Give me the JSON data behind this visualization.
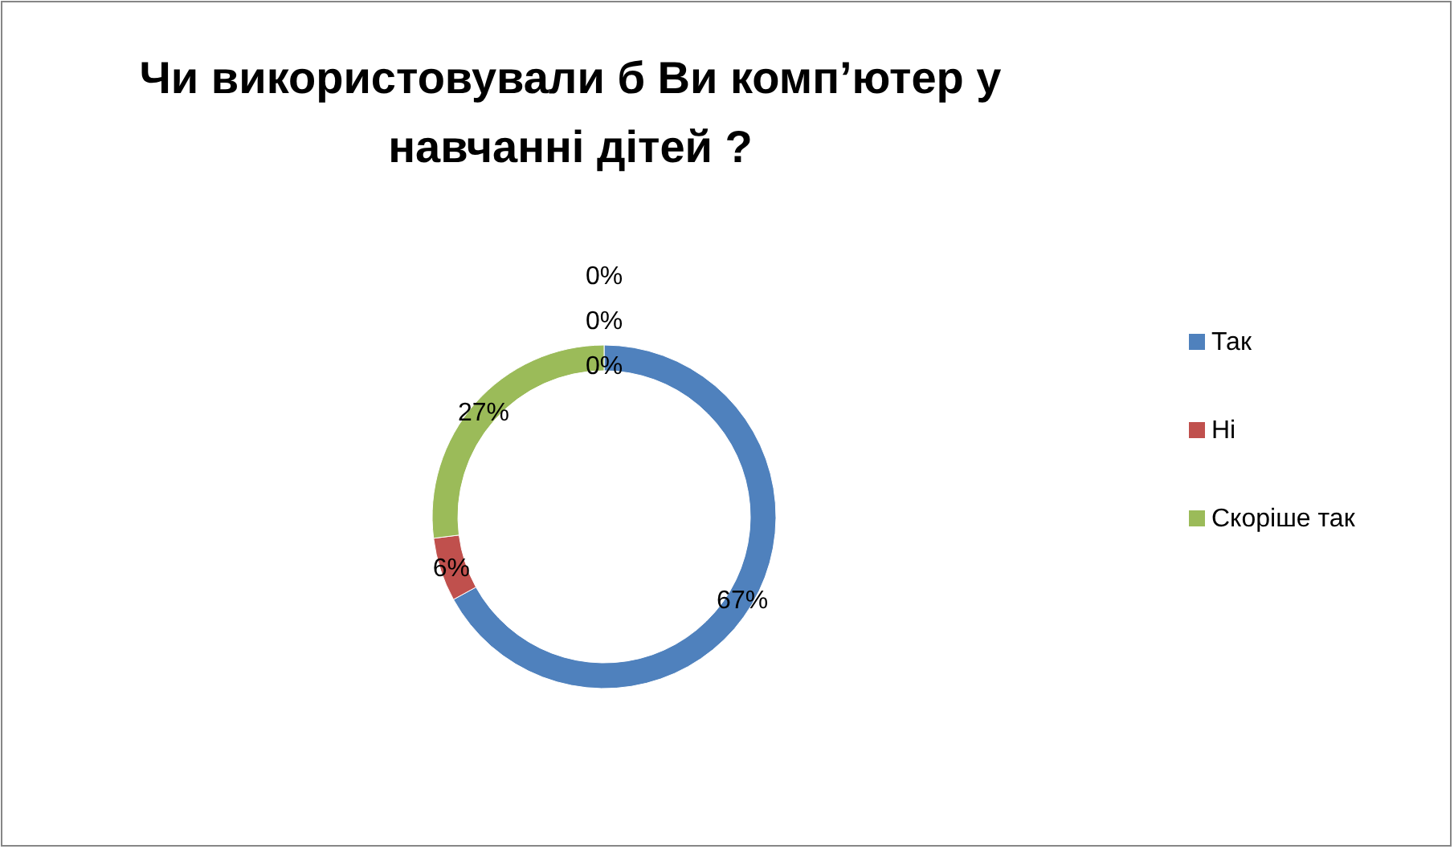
{
  "chart_data": {
    "type": "donut",
    "title": "Чи використовували б Ви комп’ютер у навчанні дітей ?",
    "categories": [
      "Так",
      "Ні",
      "Скоріше так"
    ],
    "values": [
      67,
      6,
      27
    ],
    "colors": [
      "#4f81bd",
      "#c0504d",
      "#9bbb59"
    ],
    "value_labels": [
      "67%",
      "6%",
      "27%"
    ],
    "legend": "right",
    "annotations": [
      "0%",
      "0%",
      "0%"
    ]
  }
}
